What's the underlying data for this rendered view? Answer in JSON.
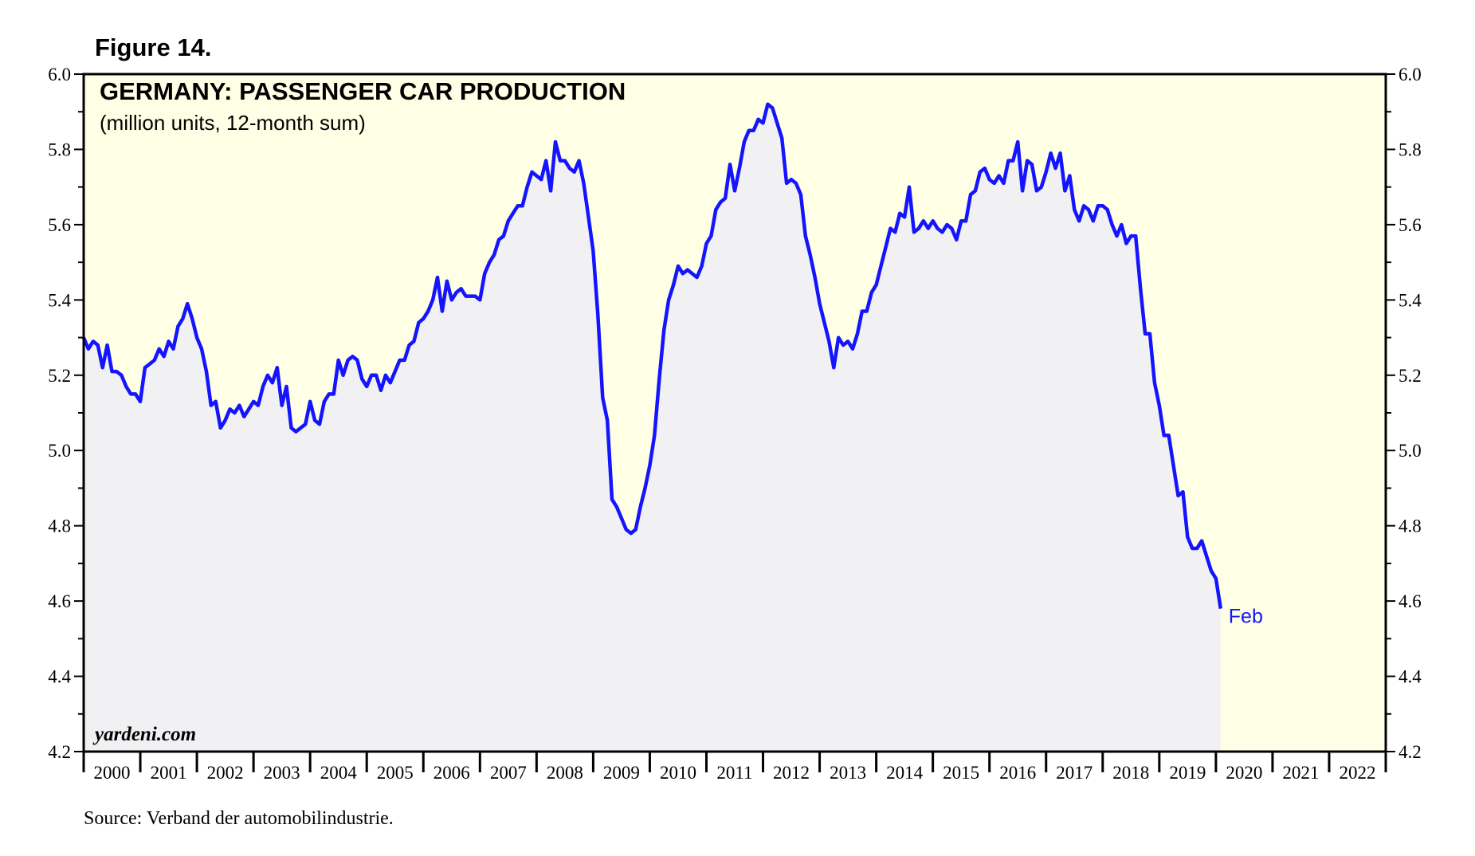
{
  "chart_data": {
    "type": "area-line",
    "figure_label": "Figure 14.",
    "title": "GERMANY: PASSENGER CAR PRODUCTION",
    "subtitle": "(million units, 12-month sum)",
    "watermark": "yardeni.com",
    "source": "Source: Verband der automobilindustrie.",
    "annotation": "Feb",
    "color": "#1414ff",
    "area_color": "#f1f1f3",
    "background": "#ffffe6",
    "xlim": [
      2000,
      2023
    ],
    "xticks": [
      2000,
      2001,
      2002,
      2003,
      2004,
      2005,
      2006,
      2007,
      2008,
      2009,
      2010,
      2011,
      2012,
      2013,
      2014,
      2015,
      2016,
      2017,
      2018,
      2019,
      2020,
      2021,
      2022,
      2023
    ],
    "categories": [
      "2000",
      "2001",
      "2002",
      "2003",
      "2004",
      "2005",
      "2006",
      "2007",
      "2008",
      "2009",
      "2010",
      "2011",
      "2012",
      "2013",
      "2014",
      "2015",
      "2016",
      "2017",
      "2018",
      "2019",
      "2020",
      "2021",
      "2022"
    ],
    "ylim": [
      4.2,
      6.0
    ],
    "yticks": [
      4.2,
      4.4,
      4.6,
      4.8,
      {
        "value": 5,
        "label": "5.0"
      },
      5.2,
      5.4,
      5.6,
      5.8,
      {
        "value": 6,
        "label": "6.0"
      }
    ],
    "yminor_ticks": [
      4.3,
      4.5,
      4.7,
      4.9,
      5.1,
      5.3,
      5.5,
      5.7,
      5.9
    ],
    "x": [
      2000,
      2000.083,
      2000.167,
      2000.25,
      2000.333,
      2000.417,
      2000.5,
      2000.583,
      2000.667,
      2000.75,
      2000.833,
      2000.917,
      2001,
      2001.083,
      2001.167,
      2001.25,
      2001.333,
      2001.417,
      2001.5,
      2001.583,
      2001.667,
      2001.75,
      2001.833,
      2001.917,
      2002,
      2002.083,
      2002.167,
      2002.25,
      2002.333,
      2002.417,
      2002.5,
      2002.583,
      2002.667,
      2002.75,
      2002.833,
      2002.917,
      2003,
      2003.083,
      2003.167,
      2003.25,
      2003.333,
      2003.417,
      2003.5,
      2003.583,
      2003.667,
      2003.75,
      2003.833,
      2003.917,
      2004,
      2004.083,
      2004.167,
      2004.25,
      2004.333,
      2004.417,
      2004.5,
      2004.583,
      2004.667,
      2004.75,
      2004.833,
      2004.917,
      2005,
      2005.083,
      2005.167,
      2005.25,
      2005.333,
      2005.417,
      2005.5,
      2005.583,
      2005.667,
      2005.75,
      2005.833,
      2005.917,
      2006,
      2006.083,
      2006.167,
      2006.25,
      2006.333,
      2006.417,
      2006.5,
      2006.583,
      2006.667,
      2006.75,
      2006.833,
      2006.917,
      2007,
      2007.083,
      2007.167,
      2007.25,
      2007.333,
      2007.417,
      2007.5,
      2007.583,
      2007.667,
      2007.75,
      2007.833,
      2007.917,
      2008,
      2008.083,
      2008.167,
      2008.25,
      2008.333,
      2008.417,
      2008.5,
      2008.583,
      2008.667,
      2008.75,
      2008.833,
      2008.917,
      2009,
      2009.083,
      2009.167,
      2009.25,
      2009.333,
      2009.417,
      2009.5,
      2009.583,
      2009.667,
      2009.75,
      2009.833,
      2009.917,
      2010,
      2010.083,
      2010.167,
      2010.25,
      2010.333,
      2010.417,
      2010.5,
      2010.583,
      2010.667,
      2010.75,
      2010.833,
      2010.917,
      2011,
      2011.083,
      2011.167,
      2011.25,
      2011.333,
      2011.417,
      2011.5,
      2011.583,
      2011.667,
      2011.75,
      2011.833,
      2011.917,
      2012,
      2012.083,
      2012.167,
      2012.25,
      2012.333,
      2012.417,
      2012.5,
      2012.583,
      2012.667,
      2012.75,
      2012.833,
      2012.917,
      2013,
      2013.083,
      2013.167,
      2013.25,
      2013.333,
      2013.417,
      2013.5,
      2013.583,
      2013.667,
      2013.75,
      2013.833,
      2013.917,
      2014,
      2014.083,
      2014.167,
      2014.25,
      2014.333,
      2014.417,
      2014.5,
      2014.583,
      2014.667,
      2014.75,
      2014.833,
      2014.917,
      2015,
      2015.083,
      2015.167,
      2015.25,
      2015.333,
      2015.417,
      2015.5,
      2015.583,
      2015.667,
      2015.75,
      2015.833,
      2015.917,
      2016,
      2016.083,
      2016.167,
      2016.25,
      2016.333,
      2016.417,
      2016.5,
      2016.583,
      2016.667,
      2016.75,
      2016.833,
      2016.917,
      2017,
      2017.083,
      2017.167,
      2017.25,
      2017.333,
      2017.417,
      2017.5,
      2017.583,
      2017.667,
      2017.75,
      2017.833,
      2017.917,
      2018,
      2018.083,
      2018.167,
      2018.25,
      2018.333,
      2018.417,
      2018.5,
      2018.583,
      2018.667,
      2018.75,
      2018.833,
      2018.917,
      2019,
      2019.083,
      2019.167,
      2019.25,
      2019.333,
      2019.417,
      2019.5,
      2019.583,
      2019.667,
      2019.75,
      2019.833,
      2019.917,
      2020,
      2020.083
    ],
    "values": [
      5.3,
      5.27,
      5.29,
      5.28,
      5.22,
      5.28,
      5.21,
      5.21,
      5.2,
      5.17,
      5.15,
      5.15,
      5.13,
      5.22,
      5.23,
      5.24,
      5.27,
      5.25,
      5.29,
      5.27,
      5.33,
      5.35,
      5.39,
      5.35,
      5.3,
      5.27,
      5.21,
      5.12,
      5.13,
      5.06,
      5.08,
      5.11,
      5.1,
      5.12,
      5.09,
      5.11,
      5.13,
      5.12,
      5.17,
      5.2,
      5.18,
      5.22,
      5.12,
      5.17,
      5.06,
      5.05,
      5.06,
      5.07,
      5.13,
      5.08,
      5.07,
      5.13,
      5.15,
      5.15,
      5.24,
      5.2,
      5.24,
      5.25,
      5.24,
      5.19,
      5.17,
      5.2,
      5.2,
      5.16,
      5.2,
      5.18,
      5.21,
      5.24,
      5.24,
      5.28,
      5.29,
      5.34,
      5.35,
      5.37,
      5.4,
      5.46,
      5.37,
      5.45,
      5.4,
      5.42,
      5.43,
      5.41,
      5.41,
      5.41,
      5.4,
      5.47,
      5.5,
      5.52,
      5.56,
      5.57,
      5.61,
      5.63,
      5.65,
      5.65,
      5.7,
      5.74,
      5.73,
      5.72,
      5.77,
      5.69,
      5.82,
      5.77,
      5.77,
      5.75,
      5.74,
      5.77,
      5.71,
      5.62,
      5.53,
      5.36,
      5.14,
      5.08,
      4.87,
      4.85,
      4.82,
      4.79,
      4.78,
      4.79,
      4.85,
      4.9,
      4.96,
      5.04,
      5.19,
      5.32,
      5.4,
      5.44,
      5.49,
      5.47,
      5.48,
      5.47,
      5.46,
      5.49,
      5.55,
      5.57,
      5.64,
      5.66,
      5.67,
      5.76,
      5.69,
      5.75,
      5.82,
      5.85,
      5.85,
      5.88,
      5.87,
      5.92,
      5.91,
      5.87,
      5.83,
      5.71,
      5.72,
      5.71,
      5.68,
      5.57,
      5.52,
      5.46,
      5.39,
      5.34,
      5.29,
      5.22,
      5.3,
      5.28,
      5.29,
      5.27,
      5.31,
      5.37,
      5.37,
      5.42,
      5.44,
      5.49,
      5.54,
      5.59,
      5.58,
      5.63,
      5.62,
      5.7,
      5.58,
      5.59,
      5.61,
      5.59,
      5.61,
      5.59,
      5.58,
      5.6,
      5.59,
      5.56,
      5.61,
      5.61,
      5.68,
      5.69,
      5.74,
      5.75,
      5.72,
      5.71,
      5.73,
      5.71,
      5.77,
      5.77,
      5.82,
      5.69,
      5.77,
      5.76,
      5.69,
      5.7,
      5.74,
      5.79,
      5.75,
      5.79,
      5.69,
      5.73,
      5.64,
      5.61,
      5.65,
      5.64,
      5.61,
      5.65,
      5.65,
      5.64,
      5.6,
      5.57,
      5.6,
      5.55,
      5.57,
      5.57,
      5.43,
      5.31,
      5.31,
      5.18,
      5.12,
      5.04,
      5.04,
      4.96,
      4.88,
      4.89,
      4.77,
      4.74,
      4.74,
      4.76,
      4.72,
      4.68,
      4.66,
      4.58
    ]
  }
}
